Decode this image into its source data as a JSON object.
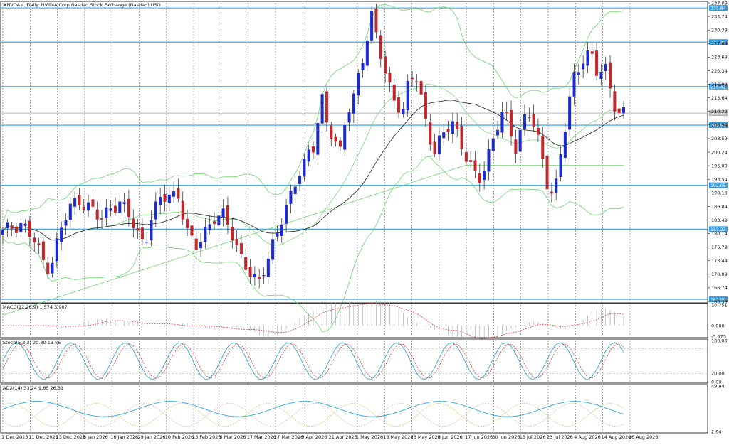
{
  "window_title": "#NVDA.s, Daily:  NVIDIA Corp Nasdaq Stock Exchange (Nasdaq) USD",
  "colors": {
    "bull": "#1a2ad0",
    "bear": "#c0262b",
    "level": "#2f9be5",
    "band": "#6cd46c",
    "ma": "#222222",
    "macd_hist": "#a0a0a0",
    "macd_signal": "#d63a3a",
    "stoch_main": "#3aa7c7",
    "stoch_signal": "#d63a3a",
    "adx": "#2aa7d6",
    "di_plus": "#b8d36a",
    "di_minus": "#f0b0b0"
  },
  "chart_data": [
    {
      "type": "candlestick",
      "name": "price",
      "x_labels": [
        "1 Dec 2025",
        "11 Dec 2025",
        "23 Dec 2025",
        "6 Jan 2026",
        "16 Jan 2026",
        "29 Jan 2026",
        "10 Feb 2026",
        "23 Feb 2026",
        "5 Mar 2026",
        "17 Mar 2026",
        "27 Mar 2026",
        "9 Apr 2026",
        "21 Apr 2026",
        "1 May 2026",
        "13 May 2026",
        "26 May 2026",
        "5 Jun 2026",
        "17 Jun 2026",
        "30 Jun 2026",
        "13 Jul 2026",
        "23 Jul 2026",
        "4 Aug 2026",
        "14 Aug 2026",
        "26 Aug 2026"
      ],
      "y_ticks": [
        "237.09",
        "233.74",
        "230.39",
        "227.04",
        "223.69",
        "220.34",
        "216.99",
        "213.64",
        "210.29",
        "206.94",
        "203.59",
        "200.24",
        "196.89",
        "193.54",
        "190.19",
        "186.84",
        "183.49",
        "180.14",
        "176.79",
        "173.44",
        "170.09",
        "166.74",
        "163.39"
      ],
      "ylim": [
        163.39,
        237.09
      ],
      "levels": [
        {
          "value": 235.84,
          "label": "235.84"
        },
        {
          "value": 227.4,
          "label": "227.40"
        },
        {
          "value": 216.42,
          "label": "216.42"
        },
        {
          "value": 206.9,
          "label": "206.90"
        },
        {
          "value": 192.05,
          "label": "192.05"
        },
        {
          "value": 181.23,
          "label": "181.23"
        },
        {
          "value": 163.9,
          "label": "163.90"
        }
      ],
      "current_price": {
        "value": 209.88,
        "label": "209.88"
      },
      "indicators": [
        "Bollinger Bands",
        "Moving Average 50",
        "Moving Average 200"
      ]
    },
    {
      "type": "bar",
      "name": "macd",
      "label": "MACD(12,26,9) 1.574 3.907",
      "y_ticks": [
        "10.751",
        "0.000",
        "-5.575"
      ],
      "ylim": [
        -5.575,
        10.751
      ]
    },
    {
      "type": "line",
      "name": "stochastic",
      "label": "Stoch(5,3,3) 20.30 13.66",
      "y_ticks": [
        "100.00",
        "20.00",
        "0.00"
      ],
      "ylim": [
        0,
        100
      ]
    },
    {
      "type": "line",
      "name": "adx",
      "label": "ADX(14) 33.24 9.65 26.31",
      "y_ticks": [
        "49.94",
        "2.64"
      ],
      "ylim": [
        2.64,
        49.94
      ]
    }
  ]
}
